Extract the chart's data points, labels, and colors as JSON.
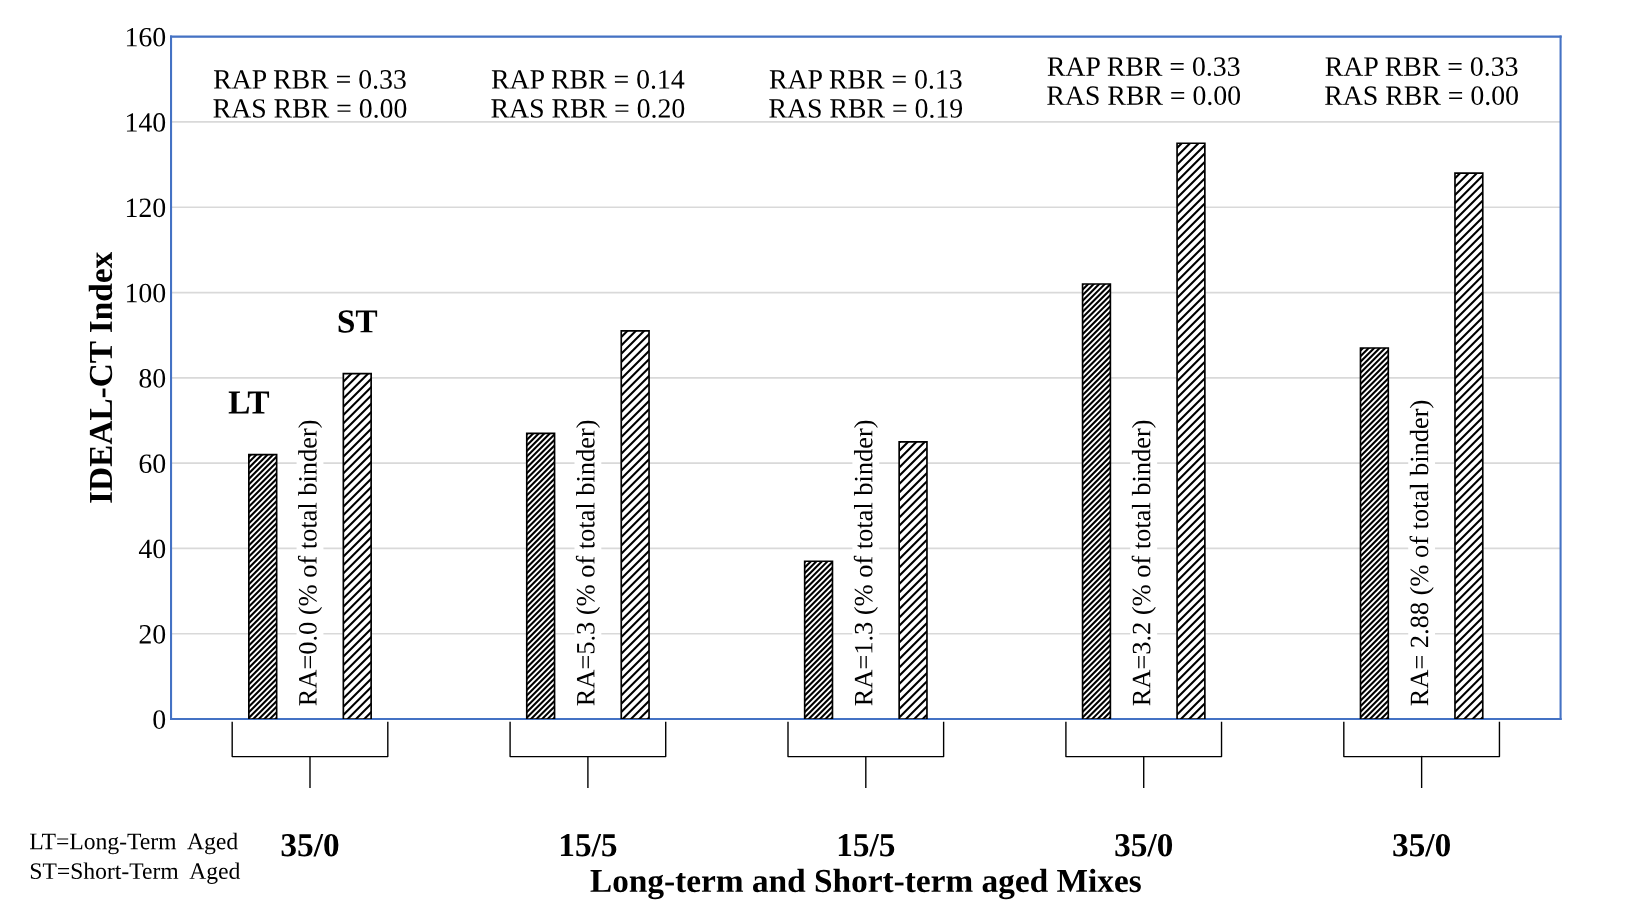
{
  "chart_data": {
    "type": "bar",
    "categories": [
      "35/0",
      "15/5",
      "15/5",
      "35/0",
      "35/0"
    ],
    "series": [
      {
        "name": "LT",
        "color": "#000000",
        "values": [
          62,
          67,
          37,
          102,
          87
        ]
      },
      {
        "name": "ST",
        "color": "#000000",
        "values": [
          81,
          91,
          65,
          135,
          128
        ]
      }
    ],
    "xlabel": "Long-term and Short-term aged Mixes",
    "ylabel": "IDEAL-CT Index",
    "ylim": [
      0,
      160
    ],
    "yticks": [
      0,
      20,
      40,
      60,
      80,
      100,
      120,
      140,
      160
    ],
    "grid": "y",
    "annotations": [
      "RAP RBR = 0.33\nRAS RBR = 0.00",
      "RA=0.0 (% of total binder)",
      "RAP RBR = 0.14\nRAS RBR = 0.20",
      "RA=5.3 (% of total binder)",
      "RAP RBR = 0.13\nRAS RBR = 0.19",
      "RA=1.3 (% of total binder)",
      "RAP RBR = 0.33\nRAS RBR = 0.00",
      "RA=3.2 (% of total binder)",
      "RAP RBR = 0.33\nRAS RBR = 0.00",
      "RA= 2.88 (% of total binder)",
      "LT=Long-Term  Aged\nST=Short-Term  Aged"
    ]
  }
}
